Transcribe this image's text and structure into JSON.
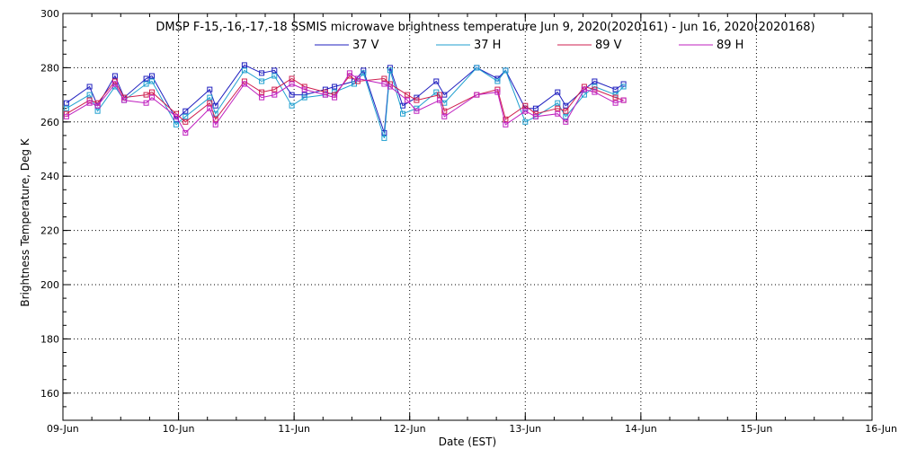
{
  "chart_data": {
    "type": "line",
    "title": "DMSP F-15,-16,-17,-18 SSMIS microwave brightness temperature Jun  9, 2020(2020161) - Jun 16, 2020(2020168)",
    "xlabel": "Date (EST)",
    "ylabel": "Brightness Temperature, Deg K",
    "xlim": [
      0,
      7
    ],
    "ylim": [
      150,
      300
    ],
    "x_ticks": [
      {
        "value": 0,
        "label": "09-Jun"
      },
      {
        "value": 1,
        "label": "10-Jun"
      },
      {
        "value": 2,
        "label": "11-Jun"
      },
      {
        "value": 3,
        "label": "12-Jun"
      },
      {
        "value": 4,
        "label": "13-Jun"
      },
      {
        "value": 5,
        "label": "14-Jun"
      },
      {
        "value": 6,
        "label": "15-Jun"
      },
      {
        "value": 7,
        "label": "16-Jun"
      }
    ],
    "y_ticks": [
      160,
      180,
      200,
      220,
      240,
      260,
      280,
      300
    ],
    "grid": true,
    "legend_position": "top-center",
    "series": [
      {
        "name": "37 V",
        "color": "#1f1fbf",
        "x": [
          0.03,
          0.23,
          0.3,
          0.45,
          0.53,
          0.72,
          0.77,
          0.98,
          1.06,
          1.27,
          1.32,
          1.57,
          1.72,
          1.83,
          1.98,
          2.09,
          2.27,
          2.35,
          2.52,
          2.6,
          2.78,
          2.83,
          2.94,
          3.06,
          3.23,
          3.3,
          3.58,
          3.76,
          3.83,
          4.0,
          4.09,
          4.28,
          4.35,
          4.51,
          4.6,
          4.78,
          4.85
        ],
        "y": [
          267,
          273,
          266,
          277,
          269,
          276,
          277,
          261,
          264,
          272,
          266,
          281,
          278,
          279,
          270,
          270,
          272,
          273,
          275,
          279,
          256,
          280,
          266,
          269,
          275,
          270,
          280,
          276,
          279,
          265,
          265,
          271,
          266,
          272,
          275,
          272,
          274
        ]
      },
      {
        "name": "37 H",
        "color": "#1f9fcf",
        "x": [
          0.03,
          0.23,
          0.3,
          0.45,
          0.53,
          0.72,
          0.77,
          0.98,
          1.06,
          1.27,
          1.32,
          1.57,
          1.72,
          1.83,
          1.98,
          2.09,
          2.27,
          2.35,
          2.52,
          2.6,
          2.78,
          2.83,
          2.94,
          3.06,
          3.23,
          3.3,
          3.58,
          3.76,
          3.83,
          4.0,
          4.09,
          4.28,
          4.35,
          4.51,
          4.6,
          4.78,
          4.85
        ],
        "y": [
          265,
          270,
          264,
          273,
          268,
          274,
          275,
          259,
          262,
          269,
          263,
          279,
          275,
          277,
          266,
          269,
          270,
          271,
          274,
          278,
          254,
          279,
          263,
          265,
          271,
          267,
          280,
          275,
          279,
          260,
          262,
          267,
          262,
          270,
          273,
          270,
          273
        ]
      },
      {
        "name": "89 V",
        "color": "#cf1f4f",
        "x": [
          0.03,
          0.23,
          0.3,
          0.45,
          0.53,
          0.72,
          0.77,
          0.98,
          1.06,
          1.27,
          1.32,
          1.57,
          1.72,
          1.83,
          1.98,
          2.09,
          2.27,
          2.35,
          2.48,
          2.55,
          2.78,
          2.83,
          2.98,
          3.06,
          3.26,
          3.3,
          3.58,
          3.76,
          3.83,
          4.0,
          4.09,
          4.28,
          4.35,
          4.51,
          4.6,
          4.78,
          4.85
        ],
        "y": [
          263,
          268,
          267,
          275,
          269,
          270,
          271,
          263,
          260,
          267,
          261,
          275,
          271,
          272,
          276,
          273,
          271,
          270,
          277,
          275,
          276,
          274,
          270,
          268,
          270,
          264,
          270,
          272,
          261,
          266,
          263,
          265,
          264,
          273,
          272,
          269,
          268
        ]
      },
      {
        "name": "89 H",
        "color": "#bf1fbf",
        "x": [
          0.03,
          0.23,
          0.3,
          0.45,
          0.53,
          0.72,
          0.77,
          0.98,
          1.06,
          1.27,
          1.32,
          1.57,
          1.72,
          1.83,
          1.98,
          2.09,
          2.27,
          2.35,
          2.48,
          2.55,
          2.78,
          2.83,
          2.98,
          3.06,
          3.26,
          3.3,
          3.58,
          3.76,
          3.83,
          4.0,
          4.09,
          4.28,
          4.35,
          4.51,
          4.6,
          4.78,
          4.85
        ],
        "y": [
          262,
          267,
          266,
          274,
          268,
          267,
          269,
          262,
          256,
          265,
          259,
          274,
          269,
          270,
          274,
          272,
          270,
          269,
          278,
          276,
          274,
          273,
          268,
          264,
          268,
          262,
          270,
          271,
          259,
          264,
          262,
          263,
          260,
          272,
          271,
          267,
          268
        ]
      }
    ]
  }
}
